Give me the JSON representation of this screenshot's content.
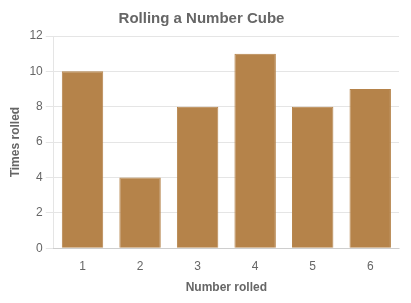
{
  "chart_data": {
    "type": "bar",
    "title": "Rolling a Number Cube",
    "categories": [
      1,
      2,
      3,
      4,
      5,
      6
    ],
    "values": [
      10,
      4,
      8,
      11,
      8,
      9
    ],
    "color": "#b5834a",
    "xlabel": "Number rolled",
    "ylabel": "Times rolled",
    "ylim": [
      0,
      12
    ],
    "yticks": [
      0,
      2,
      4,
      6,
      8,
      10,
      12
    ],
    "grid": true
  }
}
